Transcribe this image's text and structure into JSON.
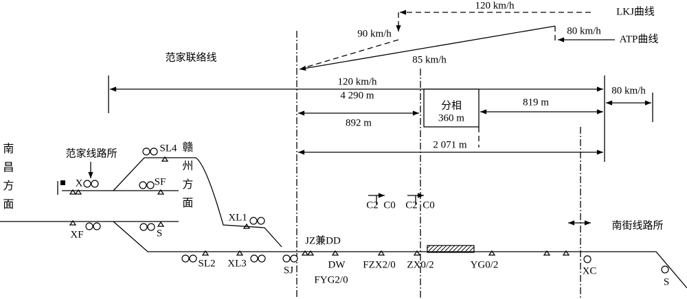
{
  "curves": {
    "lkj_speed": "120 km/h",
    "lkj_name": "LKJ曲线",
    "lkj_drop": "90 km/h",
    "atp_speed": "80 km/h",
    "atp_name": "ATP曲线",
    "atp_mid": "85 km/h"
  },
  "line_name": "范家联络线",
  "distances": {
    "total_speed": "120 km/h",
    "total": "4 290 m",
    "phase_name": "分相",
    "phase_len": "360 m",
    "right_speed": "80 km/h",
    "d892": "892 m",
    "d819": "819 m",
    "d2071": "2 071 m"
  },
  "stations": {
    "fanjia": "范家线路所",
    "nanjie": "南街线路所",
    "nanchang": "南昌方面",
    "ganzhou": "赣州方面"
  },
  "signals": {
    "SL4": "SL4",
    "X": "X",
    "SF": "SF",
    "XL1": "XL1",
    "XF": "XF",
    "S1": "S",
    "C2a": "C2",
    "C0a": "C0",
    "C2b": "C2",
    "C0b": "C0",
    "JZ": "JZ兼DD",
    "SL2": "SL2",
    "XL3": "XL3",
    "SJ": "SJ",
    "DW": "DW",
    "FYG": "FYG2/0",
    "FZX": "FZX2/0",
    "ZX": "ZX0/2",
    "YG": "YG0/2",
    "XC": "XC",
    "S2": "S"
  }
}
